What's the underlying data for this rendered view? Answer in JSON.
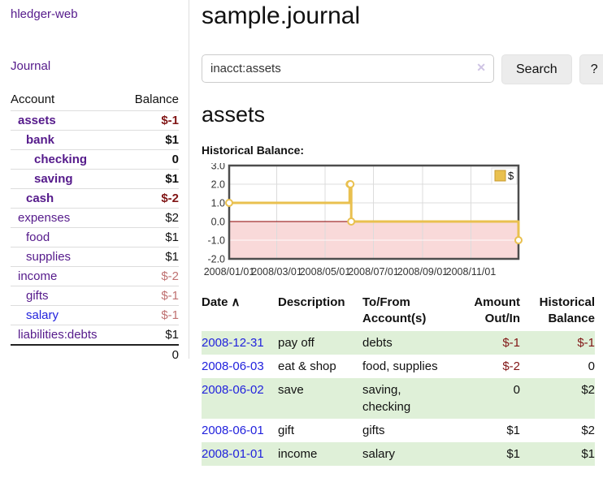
{
  "sidebar": {
    "brand": "hledger-web",
    "nav_journal": "Journal",
    "accounts": {
      "header_account": "Account",
      "header_balance": "Balance",
      "rows": [
        {
          "account": "assets",
          "balance": "$-1"
        },
        {
          "account": "bank",
          "balance": "$1"
        },
        {
          "account": "checking",
          "balance": "0"
        },
        {
          "account": "saving",
          "balance": "$1"
        },
        {
          "account": "cash",
          "balance": "$-2"
        },
        {
          "account": "expenses",
          "balance": "$2"
        },
        {
          "account": "food",
          "balance": "$1"
        },
        {
          "account": "supplies",
          "balance": "$1"
        },
        {
          "account": "income",
          "balance": "$-2"
        },
        {
          "account": "gifts",
          "balance": "$-1"
        },
        {
          "account": "salary",
          "balance": "$-1"
        },
        {
          "account": "liabilities:debts",
          "balance": "$1"
        }
      ],
      "total": "0"
    }
  },
  "main": {
    "title": "sample.journal",
    "search": {
      "value": "inacct:assets",
      "clear_icon": "✕",
      "button_label": "Search",
      "help_label": "?"
    },
    "account_heading": "assets"
  },
  "chart_data": {
    "type": "line",
    "title": "Historical Balance:",
    "legend": [
      {
        "label": "$",
        "color": "#e9c04f"
      }
    ],
    "legend_position": "top-right",
    "grid": true,
    "x_range": [
      "2008-01-01",
      "2008-12-31"
    ],
    "ylim": [
      -2,
      3
    ],
    "yticks": [
      3.0,
      2.0,
      1.0,
      0.0,
      -1.0,
      -2.0
    ],
    "xticks": [
      "2008/01/01",
      "2008/03/01",
      "2008/05/01",
      "2008/07/01",
      "2008/09/01",
      "2008/11/01"
    ],
    "series": [
      {
        "name": "$",
        "color": "#e9c04f",
        "step": true,
        "points": [
          {
            "date": "2008-01-01",
            "value": 1
          },
          {
            "date": "2008-06-01",
            "value": 2
          },
          {
            "date": "2008-06-02",
            "value": 2
          },
          {
            "date": "2008-06-03",
            "value": 0
          },
          {
            "date": "2008-12-31",
            "value": -1
          }
        ]
      }
    ],
    "negative_region_color": "#f9d9d9",
    "zero_line_color": "#8b0000"
  },
  "register": {
    "headers": {
      "date": "Date",
      "sort_icon": "∧",
      "description": "Description",
      "accounts": "To/From Account(s)",
      "amount": "Amount Out/In",
      "balance": "Historical Balance"
    },
    "rows": [
      {
        "date": "2008-12-31",
        "description": "pay off",
        "accounts": "debts",
        "amount": "$-1",
        "balance": "$-1"
      },
      {
        "date": "2008-06-03",
        "description": "eat & shop",
        "accounts": "food, supplies",
        "amount": "$-2",
        "balance": "0"
      },
      {
        "date": "2008-06-02",
        "description": "save",
        "accounts": "saving, checking",
        "amount": "0",
        "balance": "$2"
      },
      {
        "date": "2008-06-01",
        "description": "gift",
        "accounts": "gifts",
        "amount": "$1",
        "balance": "$2"
      },
      {
        "date": "2008-01-01",
        "description": "income",
        "accounts": "salary",
        "amount": "$1",
        "balance": "$1"
      }
    ]
  }
}
